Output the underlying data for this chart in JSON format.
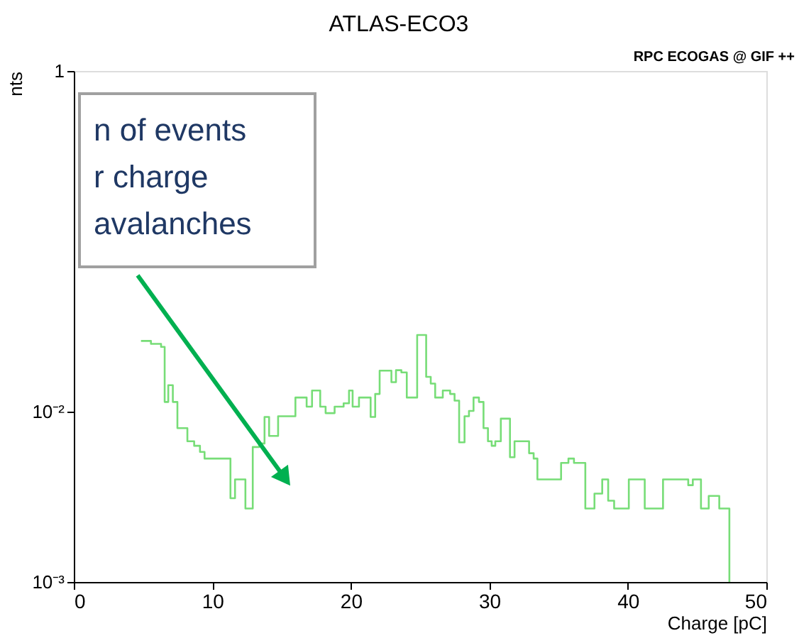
{
  "chart_data": {
    "type": "histogram",
    "title": "ATLAS-ECO3",
    "xlabel": "Charge [pC]",
    "ylabel": "nts",
    "bins": [
      4.85,
      5.57,
      6.3,
      6.56,
      6.82,
      7.15,
      7.48,
      8.2,
      8.69,
      9.11,
      9.44,
      11.31,
      11.64,
      12.39,
      12.92,
      13.38,
      13.77,
      14.1,
      14.75,
      16.0,
      16.81,
      17.2,
      17.79,
      18.18,
      18.83,
      19.48,
      19.87,
      20.13,
      20.59,
      21.43,
      21.76,
      22.08,
      22.93,
      23.26,
      23.65,
      24.04,
      24.79,
      25.44,
      25.77,
      26.09,
      26.64,
      27.17,
      27.49,
      27.82,
      28.21,
      28.53,
      28.86,
      29.25,
      29.58,
      29.9,
      30.17,
      30.43,
      30.83,
      31.49,
      31.82,
      32.87,
      33.2,
      33.47,
      35.18,
      35.71,
      36.11,
      36.93,
      37.59,
      38.15,
      38.58,
      39.01,
      40.07,
      41.22,
      42.54,
      44.36,
      44.69,
      45.28,
      45.84,
      46.6,
      47.33
    ],
    "values": [
      0.026,
      0.025,
      0.024,
      0.0114,
      0.0143,
      0.0114,
      0.008,
      0.0067,
      0.0063,
      0.0058,
      0.0053,
      0.0031,
      0.004,
      0.0027,
      0.0062,
      0.0065,
      0.0093,
      0.0072,
      0.0094,
      0.0121,
      0.0107,
      0.0133,
      0.0107,
      0.0098,
      0.0107,
      0.0112,
      0.0133,
      0.0107,
      0.0121,
      0.0093,
      0.0127,
      0.0174,
      0.0149,
      0.0175,
      0.017,
      0.0121,
      0.0282,
      0.016,
      0.0146,
      0.0121,
      0.0133,
      0.0127,
      0.0116,
      0.0066,
      0.0094,
      0.0101,
      0.0121,
      0.0114,
      0.008,
      0.0067,
      0.0063,
      0.0067,
      0.0091,
      0.0054,
      0.0067,
      0.0057,
      0.0053,
      0.004,
      0.005,
      0.0053,
      0.005,
      0.0027,
      0.0033,
      0.004,
      0.003,
      0.0027,
      0.004,
      0.0027,
      0.004,
      0.0037,
      0.004,
      0.0027,
      0.0032,
      0.0027
    ],
    "color": "#77dd77",
    "xlim": [
      0,
      50
    ],
    "xticks": [
      0,
      10,
      20,
      30,
      40,
      50
    ],
    "ylim": [
      0.001,
      1
    ],
    "yticks": [
      {
        "value": 0.001,
        "label": "10⁻³"
      },
      {
        "value": 0.01,
        "label": "10⁻²"
      },
      1
    ],
    "log": true,
    "grid": false,
    "annotations": [
      "n of events\nr charge\navalanches",
      "RPC ECOGAS @ GIF ++"
    ]
  }
}
